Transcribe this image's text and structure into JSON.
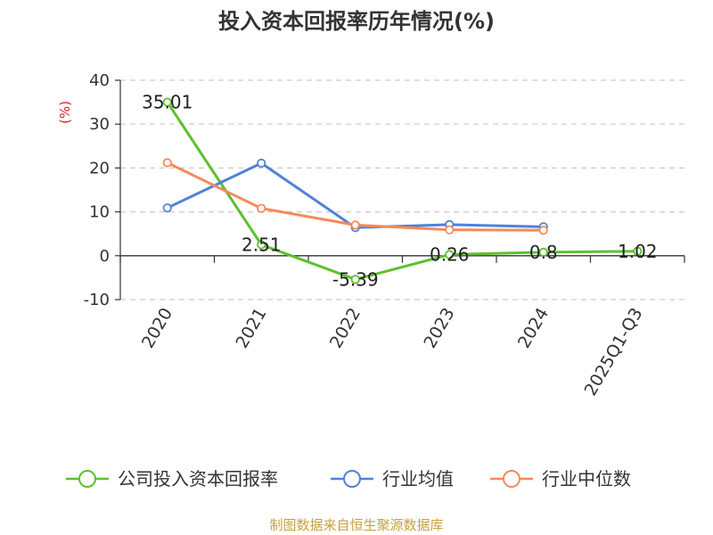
{
  "chart_data": {
    "type": "line",
    "title": "投入资本回报率历年情况(%)",
    "ylabel": "(%)",
    "xlabel": "",
    "ylim": [
      -10,
      40
    ],
    "yticks": [
      40,
      30,
      20,
      10,
      0,
      -10
    ],
    "grid": true,
    "legend_position": "bottom",
    "categories": [
      "2020",
      "2021",
      "2022",
      "2023",
      "2024",
      "2025Q1-Q3"
    ],
    "series": [
      {
        "name": "公司投入资本回报率",
        "color": "#5cc12f",
        "values": [
          35.01,
          2.51,
          -5.39,
          0.26,
          0.8,
          1.02
        ],
        "labels": [
          "35.01",
          "2.51",
          "-5.39",
          "0.26",
          "0.8",
          "1.02"
        ]
      },
      {
        "name": "行业均值",
        "color": "#4f82d8",
        "values": [
          10.9,
          21.1,
          6.4,
          7.1,
          6.6,
          null
        ]
      },
      {
        "name": "行业中位数",
        "color": "#f58a5a",
        "values": [
          21.2,
          10.8,
          7.0,
          5.9,
          5.8,
          null
        ]
      }
    ]
  },
  "source": "制图数据来自恒生聚源数据库"
}
